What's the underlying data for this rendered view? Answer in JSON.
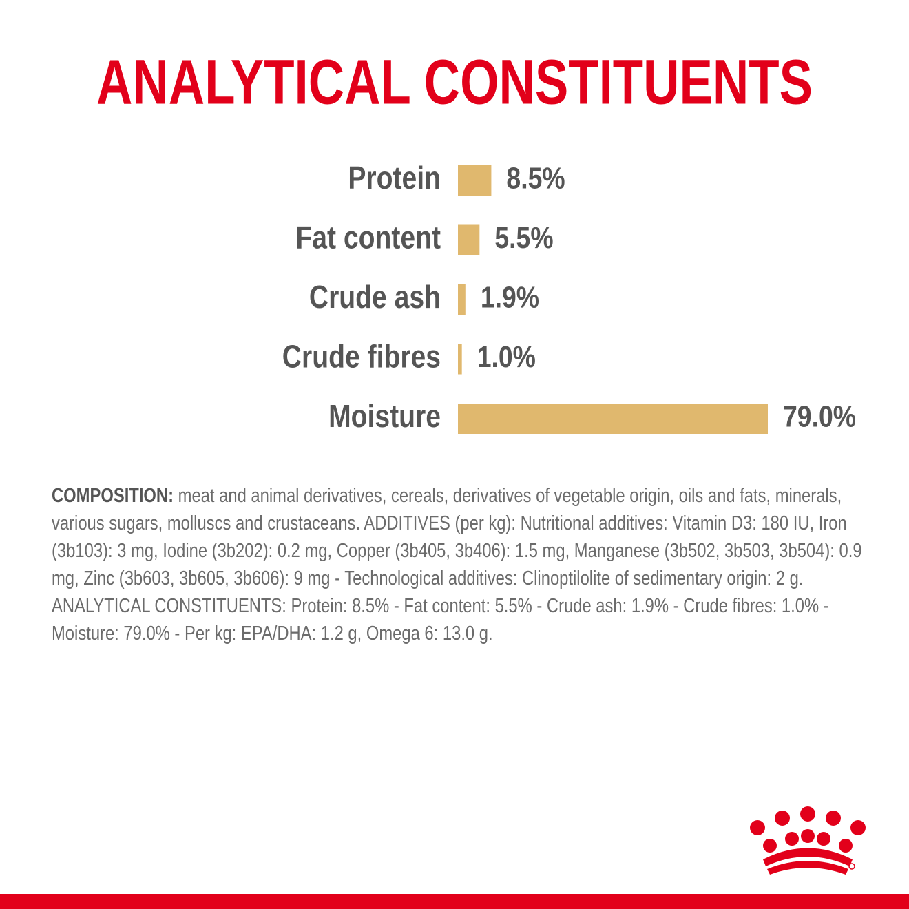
{
  "chart_data": {
    "type": "bar",
    "orientation": "horizontal",
    "title": "ANALYTICAL CONSTITUENTS",
    "categories": [
      "Protein",
      "Fat content",
      "Crude ash",
      "Crude fibres",
      "Moisture"
    ],
    "values": [
      8.5,
      5.5,
      1.9,
      1.0,
      79.0
    ],
    "value_labels": [
      "8.5%",
      "5.5%",
      "1.9%",
      "1.0%",
      "79.0%"
    ],
    "color": "#e0b86e"
  },
  "composition": {
    "label": "COMPOSITION:",
    "text": "meat and animal derivatives, cereals, derivatives of vegetable origin, oils and fats, minerals, various sugars, molluscs and crustaceans. ADDITIVES (per kg): Nutritional additives: Vitamin D3: 180 IU, Iron (3b103): 3 mg, Iodine (3b202): 0.2 mg, Copper (3b405, 3b406): 1.5 mg, Manganese (3b502, 3b503, 3b504): 0.9 mg, Zinc (3b603, 3b605, 3b606): 9 mg - Technological additives: Clinoptilolite of sedimentary origin: 2 g. ANALYTICAL CONSTITUENTS: Protein: 8.5% - Fat content: 5.5% - Crude ash: 1.9% - Crude fibres: 1.0% - Moisture: 79.0% - Per kg: EPA/DHA: 1.2 g, Omega 6: 13.0 g."
  }
}
